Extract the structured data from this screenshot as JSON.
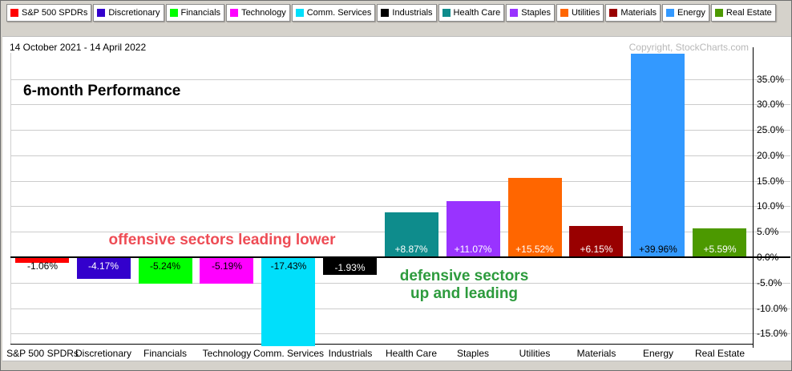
{
  "header": {
    "date_range": "14 October 2021 - 14 April 2022",
    "copyright": "Copyright, StockCharts.com",
    "title": "6-month Performance"
  },
  "legend": {
    "items": [
      {
        "label": "S&P 500 SPDRs",
        "color": "#FF0000"
      },
      {
        "label": "Discretionary",
        "color": "#3300CC"
      },
      {
        "label": "Financials",
        "color": "#00FF00"
      },
      {
        "label": "Technology",
        "color": "#FF00FF"
      },
      {
        "label": "Comm. Services",
        "color": "#00DFFB"
      },
      {
        "label": "Industrials",
        "color": "#000000"
      },
      {
        "label": "Health Care",
        "color": "#0E8C8C"
      },
      {
        "label": "Staples",
        "color": "#9933FF"
      },
      {
        "label": "Utilities",
        "color": "#FF6600"
      },
      {
        "label": "Materials",
        "color": "#990000"
      },
      {
        "label": "Energy",
        "color": "#3399FF"
      },
      {
        "label": "Real Estate",
        "color": "#4C9900"
      }
    ]
  },
  "annotations": {
    "offensive": "offensive sectors leading lower",
    "offensive_color": "#EE4C55",
    "defensive_line1": "defensive sectors",
    "defensive_line2": "up and leading",
    "defensive_color": "#2D9B3D"
  },
  "chart_data": {
    "type": "bar",
    "title": "6-month Performance",
    "subtitle": "14 October 2021 - 14 April 2022",
    "categories": [
      "S&P 500 SPDRs",
      "Discretionary",
      "Financials",
      "Technology",
      "Comm. Services",
      "Industrials",
      "Health Care",
      "Staples",
      "Utilities",
      "Materials",
      "Energy",
      "Real Estate"
    ],
    "values": [
      -1.06,
      -4.17,
      -5.24,
      -5.19,
      -17.43,
      -1.93,
      8.87,
      11.07,
      15.52,
      6.15,
      39.96,
      5.59
    ],
    "value_labels": [
      "-1.06%",
      "-4.17%",
      "-5.24%",
      "-5.19%",
      "-17.43%",
      "-1.93%",
      "+8.87%",
      "+11.07%",
      "+15.52%",
      "+6.15%",
      "+39.96%",
      "+5.59%"
    ],
    "bar_colors": [
      "#FF0000",
      "#3300CC",
      "#00FF00",
      "#FF00FF",
      "#00DFFB",
      "#000000",
      "#0E8C8C",
      "#9933FF",
      "#FF6600",
      "#990000",
      "#3399FF",
      "#4C9900"
    ],
    "label_text_colors": [
      "#000000",
      "#FFFFFF",
      "#000000",
      "#000000",
      "#000000",
      "#FFFFFF",
      "#FFFFFF",
      "#FFFFFF",
      "#FFFFFF",
      "#FFFFFF",
      "#000000",
      "#FFFFFF"
    ],
    "label_backgrounds": [
      null,
      null,
      null,
      null,
      null,
      "#000000",
      null,
      null,
      null,
      null,
      null,
      null
    ],
    "ylim": [
      -17.5,
      40
    ],
    "ytick_values": [
      35,
      30,
      25,
      20,
      15,
      10,
      5,
      0,
      -5,
      -10,
      -15
    ],
    "ytick_labels": [
      "35.0%",
      "30.0%",
      "25.0%",
      "20.0%",
      "15.0%",
      "10.0%",
      "5.0%",
      "0.0%",
      "-5.0%",
      "-10.0%",
      "-15.0%"
    ],
    "grid": true,
    "legend_position": "top",
    "ylabel": "",
    "xlabel": ""
  }
}
